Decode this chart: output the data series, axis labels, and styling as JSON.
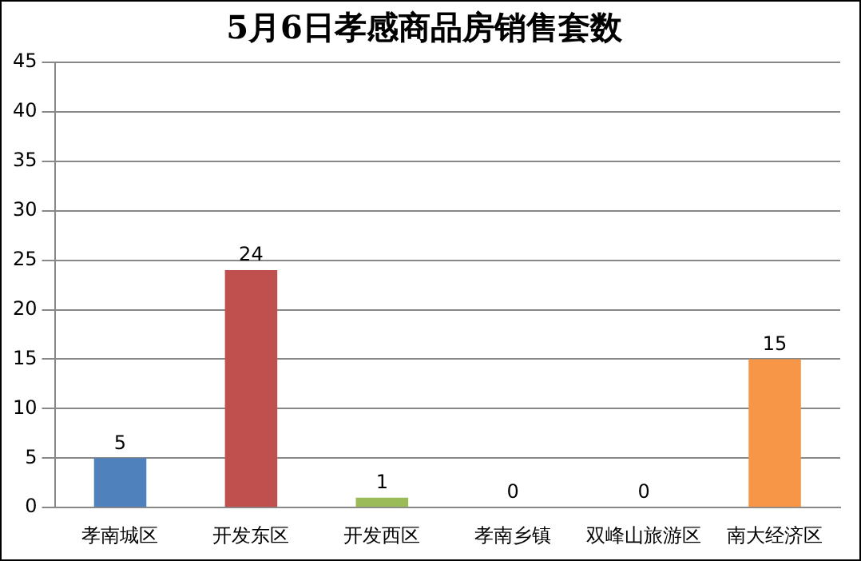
{
  "chart_data": {
    "type": "bar",
    "title": "5月6日孝感商品房销售套数",
    "categories": [
      "孝南城区",
      "开发东区",
      "开发西区",
      "孝南乡镇",
      "双峰山旅游区",
      "南大经济区"
    ],
    "values": [
      5,
      24,
      1,
      0,
      0,
      15
    ],
    "colors": [
      "#4f81bd",
      "#c0504d",
      "#9bbb59",
      "#8064a2",
      "#4bacc6",
      "#f79646"
    ],
    "ylim": [
      0,
      45
    ],
    "yticks": [
      0,
      5,
      10,
      15,
      20,
      25,
      30,
      35,
      40,
      45
    ],
    "grid": "y",
    "data_labels": true,
    "legend": false
  }
}
